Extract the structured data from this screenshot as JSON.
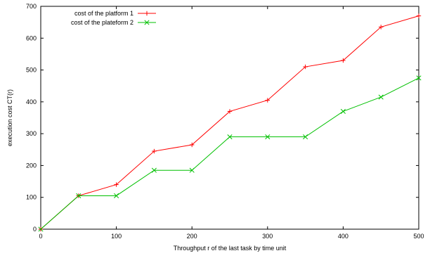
{
  "chart_data": {
    "type": "line",
    "title": "",
    "xlabel": "Throughput r of the last task by time unit",
    "ylabel": "execution cost CT(r)",
    "xlim": [
      0,
      500
    ],
    "ylim": [
      0,
      700
    ],
    "xticks": [
      0,
      100,
      200,
      300,
      400,
      500
    ],
    "yticks": [
      0,
      100,
      200,
      300,
      400,
      500,
      600,
      700
    ],
    "grid": false,
    "legend_position": "top-left",
    "x": [
      0,
      50,
      100,
      150,
      200,
      250,
      300,
      350,
      400,
      450,
      500
    ],
    "series": [
      {
        "name": "cost of the platform 1",
        "color": "#ff0000",
        "marker": "plus",
        "values": [
          0,
          105,
          140,
          245,
          265,
          370,
          405,
          510,
          530,
          635,
          670
        ]
      },
      {
        "name": "cost of the plateform 2",
        "color": "#00c000",
        "marker": "cross",
        "values": [
          0,
          105,
          105,
          185,
          185,
          290,
          290,
          290,
          370,
          415,
          475
        ]
      }
    ]
  }
}
